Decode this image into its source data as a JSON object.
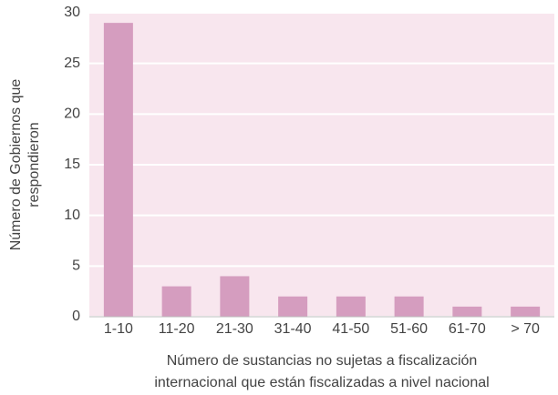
{
  "chart_data": {
    "type": "bar",
    "ylabel": [
      "Número de Gobiernos que",
      "respondieron"
    ],
    "xlabel": [
      "Número de sustancias no sujetas a fiscalización",
      "internacional que están fiscalizadas a nivel nacional"
    ],
    "categories": [
      "1-10",
      "11-20",
      "21-30",
      "31-40",
      "41-50",
      "51-60",
      "61-70",
      "> 70"
    ],
    "values": [
      29,
      3,
      4,
      2,
      2,
      2,
      1,
      1
    ],
    "color": "#d59dbf",
    "ylim": [
      0,
      30
    ],
    "yticks": [
      0,
      5,
      10,
      15,
      20,
      25,
      30
    ],
    "grid": true
  }
}
